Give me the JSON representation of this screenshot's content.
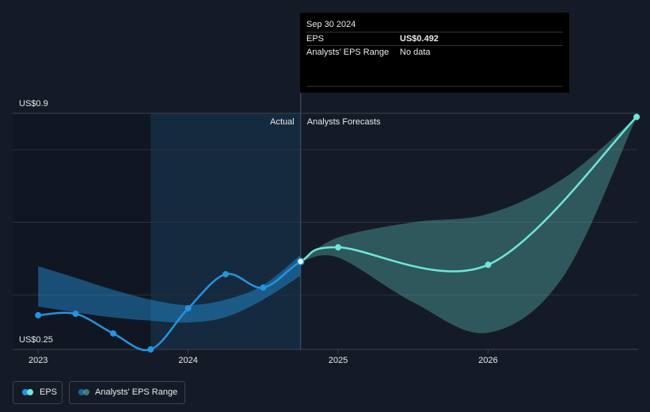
{
  "chart_data": {
    "type": "line",
    "x": [
      2023,
      2023.25,
      2023.5,
      2023.75,
      2024,
      2024.25,
      2024.5,
      2024.75,
      2025,
      2026,
      2026.99
    ],
    "series": [
      {
        "name": "EPS",
        "color": "#2394df",
        "forecast_color": "#6ee7d9",
        "values": [
          0.344,
          0.348,
          0.294,
          0.25,
          0.363,
          0.457,
          0.42,
          0.492,
          0.531,
          0.483,
          0.89
        ]
      }
    ],
    "range": {
      "name": "Analysts' EPS Range",
      "pieces": [
        {
          "color": "#2394df",
          "x": [
            2023,
            2023.25,
            2023.5,
            2023.75,
            2024,
            2024.25,
            2024.5,
            2024.75
          ],
          "low": [
            0.368,
            0.352,
            0.338,
            0.329,
            0.324,
            0.339,
            0.387,
            0.453
          ],
          "high": [
            0.479,
            0.447,
            0.414,
            0.387,
            0.372,
            0.387,
            0.427,
            0.51
          ]
        },
        {
          "color": "#6ee7d9",
          "x": [
            2024.75,
            2025,
            2025.5,
            2026,
            2026.5,
            2026.99
          ],
          "low": [
            0.492,
            0.503,
            0.38,
            0.296,
            0.45,
            0.89
          ],
          "high": [
            0.492,
            0.558,
            0.6,
            0.623,
            0.72,
            0.89
          ]
        }
      ]
    },
    "xlim": [
      2022.83,
      2027
    ],
    "xticks": [
      2023,
      2024,
      2025,
      2026
    ],
    "ylim": [
      0.25,
      0.9
    ],
    "yticks": [
      {
        "value": 0.25,
        "label": "US$0.25"
      },
      {
        "value": 0.9,
        "label": "US$0.9"
      }
    ],
    "ygrid": [
      0.4,
      0.6,
      0.8
    ],
    "actual_label": "Actual",
    "forecast_label": "Analysts Forecasts",
    "tooltip": {
      "x": 2024.75,
      "date": "Sep 30 2024",
      "rows": [
        {
          "label": "EPS",
          "value": 0.492,
          "value_label": "US$0.492"
        },
        {
          "label": "Analysts' EPS Range",
          "value_label": "No data"
        }
      ]
    }
  }
}
